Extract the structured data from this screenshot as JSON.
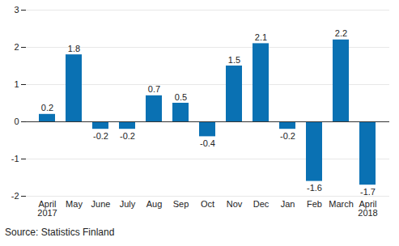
{
  "chart_data": {
    "type": "bar",
    "caption": "Source: Statistics Finland",
    "categories": [
      "April\n2017",
      "May",
      "June",
      "July",
      "Aug",
      "Sep",
      "Oct",
      "Nov",
      "Dec",
      "Jan",
      "Feb",
      "March",
      "April\n2018"
    ],
    "values": [
      0.2,
      1.8,
      -0.2,
      -0.2,
      0.7,
      0.5,
      -0.4,
      1.5,
      2.1,
      -0.2,
      -1.6,
      2.2,
      -1.7
    ],
    "color": "#0a71b3",
    "ylim": [
      -2,
      3
    ],
    "yticks": [
      -2,
      -1,
      0,
      1,
      2,
      3
    ],
    "grid": true,
    "data_labels": true
  }
}
